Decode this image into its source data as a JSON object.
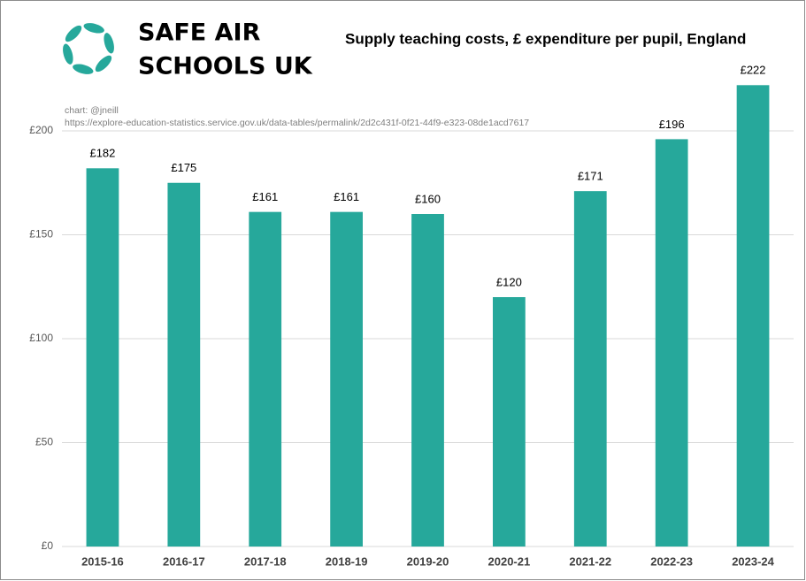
{
  "chart_data": {
    "type": "bar",
    "title": "Supply teaching costs, £ expenditure per pupil, England",
    "logo_text": [
      "SAFE AIR",
      "SCHOOLS UK"
    ],
    "annotations": [
      "chart: @jneill",
      "https://explore-education-statistics.service.gov.uk/data-tables/permalink/2d2c431f-0f21-44f9-e323-08de1acd7617"
    ],
    "categories": [
      "2015-16",
      "2016-17",
      "2017-18",
      "2018-19",
      "2019-20",
      "2020-21",
      "2021-22",
      "2022-23",
      "2023-24"
    ],
    "values": [
      182,
      175,
      161,
      161,
      160,
      120,
      171,
      196,
      222
    ],
    "value_labels": [
      "£182",
      "£175",
      "£161",
      "£161",
      "£160",
      "£120",
      "£171",
      "£196",
      "£222"
    ],
    "color": "#26a89b",
    "ylim": [
      0,
      240
    ],
    "yticks": [
      {
        "value": 0,
        "label": "£0"
      },
      {
        "value": 50,
        "label": "£50"
      },
      {
        "value": 100,
        "label": "£100"
      },
      {
        "value": 150,
        "label": "£150"
      },
      {
        "value": 200,
        "label": "£200"
      }
    ],
    "grid": true
  }
}
